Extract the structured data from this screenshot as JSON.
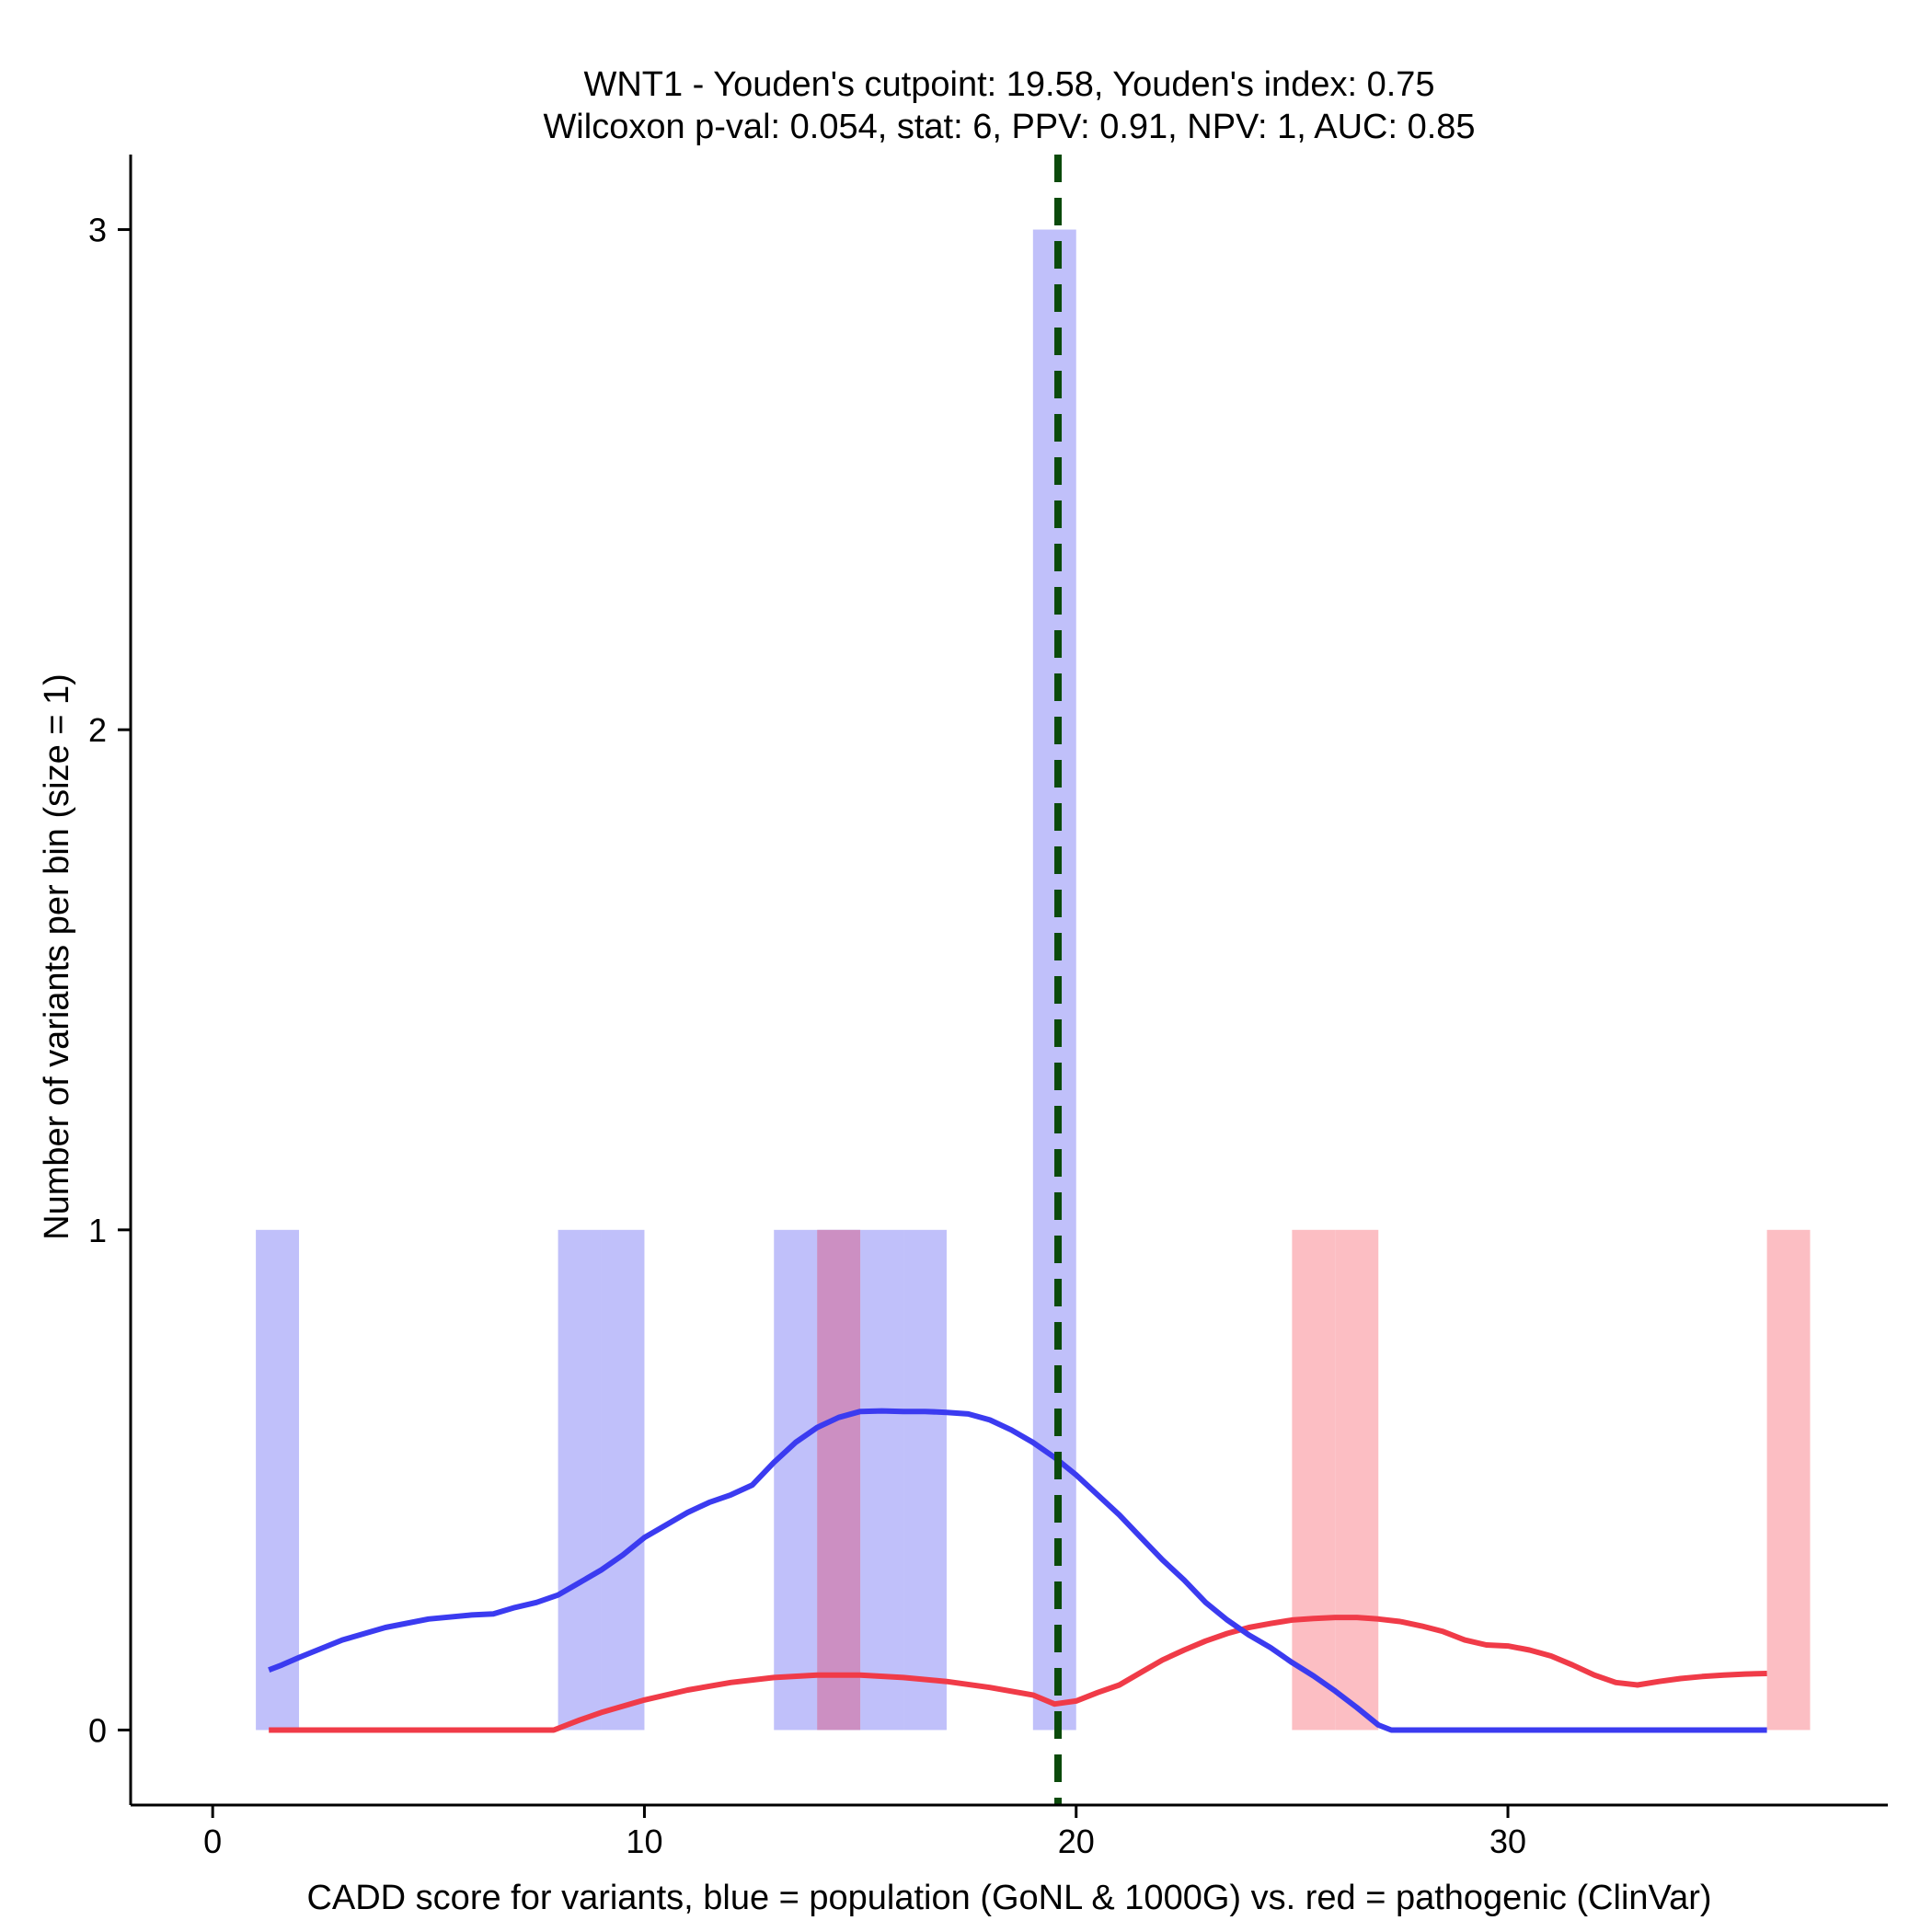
{
  "chart_data": {
    "type": "bar",
    "title_line1": "WNT1 - Youden's cutpoint: 19.58, Youden's index: 0.75",
    "title_line2": "Wilcoxon p-val: 0.054, stat: 6, PPV: 0.91, NPV: 1, AUC: 0.85",
    "xlabel": "CADD score for variants, blue = population (GoNL & 1000G) vs. red = pathogenic (ClinVar)",
    "ylabel": "Number of variants per bin (size = 1)",
    "xlim": [
      -1.9,
      38.8
    ],
    "ylim": [
      -0.15,
      3.15
    ],
    "x_ticks": [
      0,
      10,
      20,
      30
    ],
    "y_ticks": [
      0,
      1,
      2,
      3
    ],
    "bin_width": 1,
    "cutpoint": 19.58,
    "colors": {
      "population_fill": "#c0c0fa",
      "pathogenic_fill": "#fcbec3",
      "overlap_fill": "#cc8fc2",
      "population_line": "#3b3bf0",
      "pathogenic_line": "#f03b48",
      "cutpoint_line": "#0b4a0b"
    },
    "series": [
      {
        "name": "population (GoNL & 1000G)",
        "color": "blue",
        "bins": [
          {
            "start": 1,
            "count": 1
          },
          {
            "start": 8,
            "count": 1
          },
          {
            "start": 9,
            "count": 1
          },
          {
            "start": 13,
            "count": 1
          },
          {
            "start": 14,
            "count": 1
          },
          {
            "start": 15,
            "count": 1
          },
          {
            "start": 16,
            "count": 1
          },
          {
            "start": 19,
            "count": 3
          }
        ],
        "density": [
          [
            1.3,
            0.12
          ],
          [
            1.6,
            0.13
          ],
          [
            2,
            0.145
          ],
          [
            3,
            0.18
          ],
          [
            4,
            0.205
          ],
          [
            5,
            0.222
          ],
          [
            6,
            0.23
          ],
          [
            6.5,
            0.232
          ],
          [
            7,
            0.245
          ],
          [
            7.5,
            0.255
          ],
          [
            8,
            0.27
          ],
          [
            8.5,
            0.295
          ],
          [
            9,
            0.32
          ],
          [
            9.5,
            0.35
          ],
          [
            10,
            0.385
          ],
          [
            10.5,
            0.41
          ],
          [
            11,
            0.435
          ],
          [
            11.5,
            0.455
          ],
          [
            12,
            0.47
          ],
          [
            12.5,
            0.49
          ],
          [
            13,
            0.535
          ],
          [
            13.5,
            0.575
          ],
          [
            14,
            0.605
          ],
          [
            14.5,
            0.625
          ],
          [
            15,
            0.637
          ],
          [
            15.5,
            0.638
          ],
          [
            16,
            0.637
          ],
          [
            16.5,
            0.637
          ],
          [
            17,
            0.635
          ],
          [
            17.5,
            0.632
          ],
          [
            18,
            0.62
          ],
          [
            18.5,
            0.6
          ],
          [
            19,
            0.575
          ],
          [
            19.5,
            0.545
          ],
          [
            20,
            0.51
          ],
          [
            20.5,
            0.47
          ],
          [
            21,
            0.43
          ],
          [
            21.5,
            0.385
          ],
          [
            22,
            0.34
          ],
          [
            22.5,
            0.3
          ],
          [
            23,
            0.255
          ],
          [
            23.5,
            0.22
          ],
          [
            24,
            0.19
          ],
          [
            24.5,
            0.165
          ],
          [
            25,
            0.135
          ],
          [
            25.5,
            0.108
          ],
          [
            26,
            0.078
          ],
          [
            26.5,
            0.045
          ],
          [
            27,
            0.01
          ],
          [
            27.3,
            0.0
          ],
          [
            28,
            0.0
          ],
          [
            30,
            0.0
          ],
          [
            32,
            0.0
          ],
          [
            34,
            0.0
          ],
          [
            36,
            0.0
          ]
        ]
      },
      {
        "name": "pathogenic (ClinVar)",
        "color": "red",
        "bins": [
          {
            "start": 14,
            "count": 1
          },
          {
            "start": 25,
            "count": 1
          },
          {
            "start": 26,
            "count": 1
          },
          {
            "start": 36,
            "count": 1
          }
        ],
        "density": [
          [
            1.3,
            0.0
          ],
          [
            3,
            0.0
          ],
          [
            5,
            0.0
          ],
          [
            7,
            0.0
          ],
          [
            7.9,
            0.0
          ],
          [
            8.5,
            0.02
          ],
          [
            9,
            0.035
          ],
          [
            10,
            0.06
          ],
          [
            11,
            0.08
          ],
          [
            12,
            0.095
          ],
          [
            13,
            0.105
          ],
          [
            14,
            0.11
          ],
          [
            15,
            0.11
          ],
          [
            16,
            0.105
          ],
          [
            17,
            0.097
          ],
          [
            18,
            0.085
          ],
          [
            19,
            0.07
          ],
          [
            19.5,
            0.052
          ],
          [
            20,
            0.058
          ],
          [
            20.5,
            0.075
          ],
          [
            21,
            0.09
          ],
          [
            21.5,
            0.115
          ],
          [
            22,
            0.14
          ],
          [
            22.5,
            0.16
          ],
          [
            23,
            0.178
          ],
          [
            23.5,
            0.193
          ],
          [
            24,
            0.205
          ],
          [
            24.5,
            0.213
          ],
          [
            25,
            0.22
          ],
          [
            25.5,
            0.223
          ],
          [
            26,
            0.225
          ],
          [
            26.5,
            0.225
          ],
          [
            27,
            0.222
          ],
          [
            27.5,
            0.217
          ],
          [
            28,
            0.208
          ],
          [
            28.5,
            0.197
          ],
          [
            29,
            0.18
          ],
          [
            29.5,
            0.17
          ],
          [
            30,
            0.168
          ],
          [
            30.5,
            0.16
          ],
          [
            31,
            0.148
          ],
          [
            31.5,
            0.13
          ],
          [
            32,
            0.11
          ],
          [
            32.5,
            0.095
          ],
          [
            33,
            0.09
          ],
          [
            33.5,
            0.097
          ],
          [
            34,
            0.103
          ],
          [
            34.5,
            0.107
          ],
          [
            35,
            0.11
          ],
          [
            35.5,
            0.112
          ],
          [
            36,
            0.113
          ]
        ]
      }
    ]
  }
}
